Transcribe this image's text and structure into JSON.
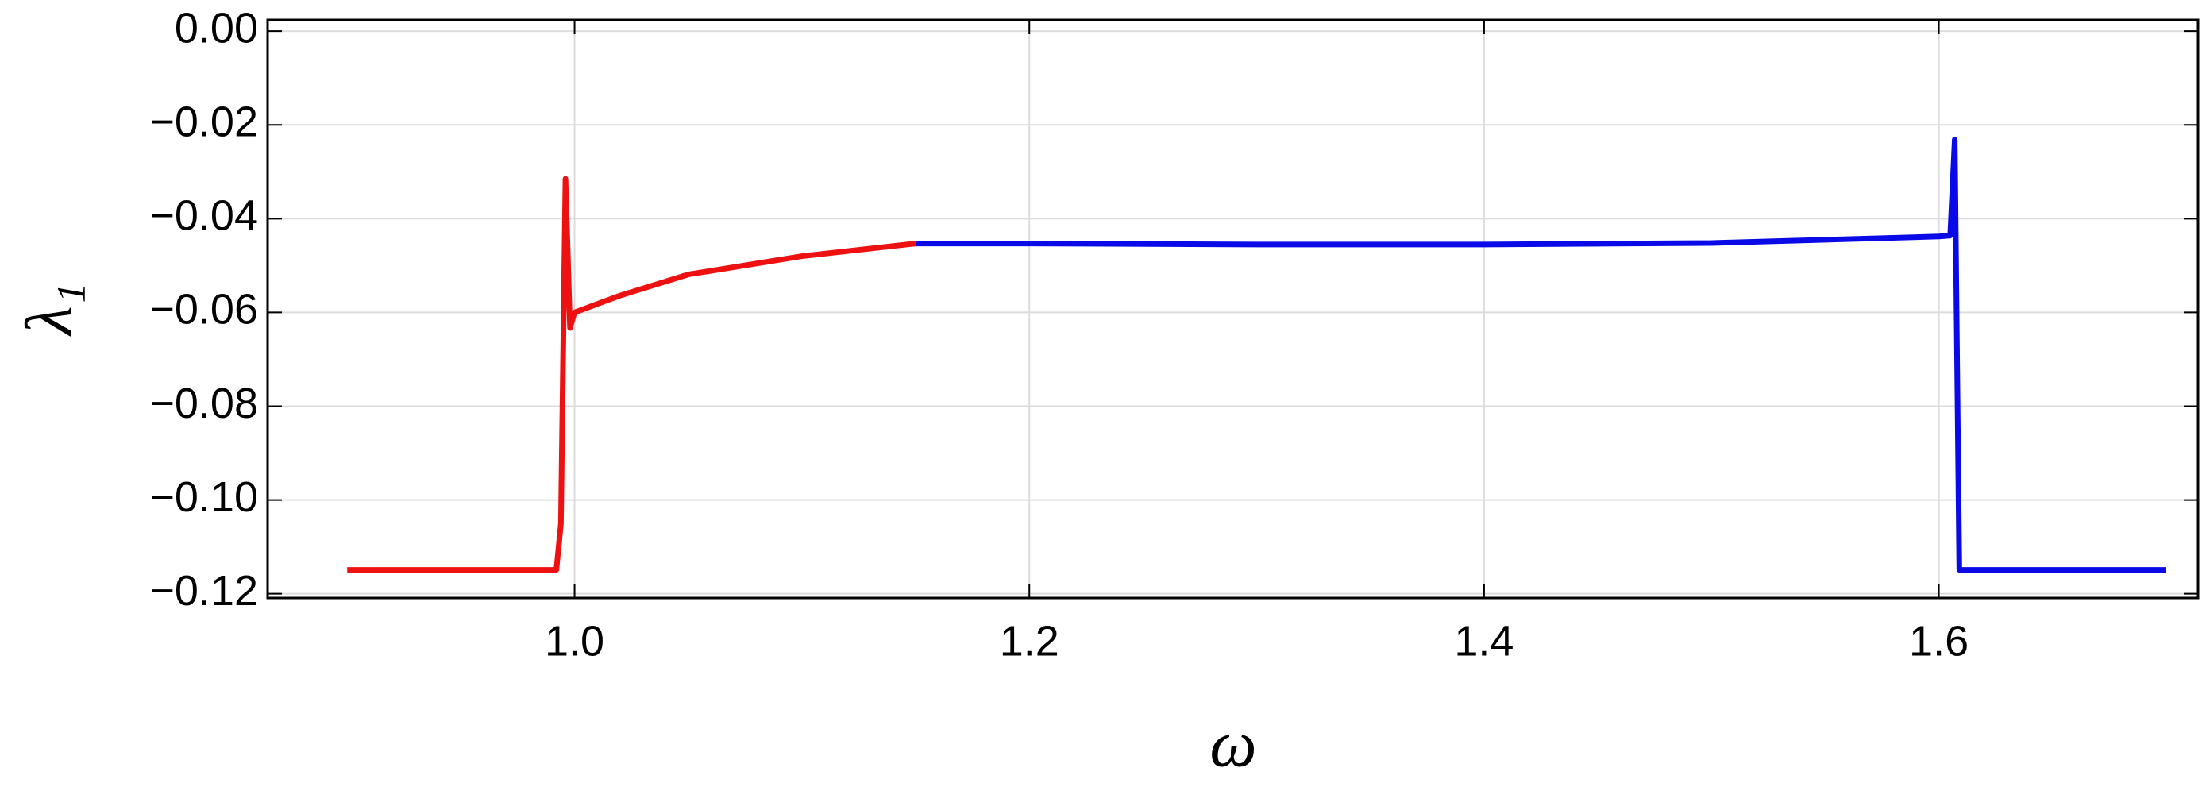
{
  "chart_data": {
    "type": "line",
    "xlabel": "ω",
    "ylabel": "λ₁",
    "xlim": [
      0.865,
      1.714
    ],
    "ylim": [
      -0.1209,
      0.0024
    ],
    "xticks": [
      {
        "value": 1,
        "label": "1.0"
      },
      {
        "value": 1.2,
        "label": "1.2"
      },
      {
        "value": 1.4,
        "label": "1.4"
      },
      {
        "value": 1.6,
        "label": "1.6"
      }
    ],
    "yticks": [
      {
        "value": 0,
        "label": "0.00"
      },
      {
        "value": -0.02,
        "label": "−0.02"
      },
      {
        "value": -0.04,
        "label": "−0.04"
      },
      {
        "value": -0.06,
        "label": "−0.06"
      },
      {
        "value": -0.08,
        "label": "−0.08"
      },
      {
        "value": -0.1,
        "label": "−0.10"
      },
      {
        "value": -0.12,
        "label": "−0.12"
      }
    ],
    "grid": true,
    "series": [
      {
        "color": "#ee1111",
        "x": [
          0.9,
          0.95,
          0.992,
          0.994,
          0.996,
          0.998,
          1.0,
          1.02,
          1.05,
          1.1,
          1.15
        ],
        "values": [
          -0.1149,
          -0.1149,
          -0.1149,
          -0.105,
          -0.0315,
          -0.0633,
          -0.06,
          -0.0564,
          -0.0519,
          -0.048,
          -0.0453
        ]
      },
      {
        "color": "#0a0ae8",
        "x": [
          1.15,
          1.2,
          1.3,
          1.4,
          1.5,
          1.6,
          1.605,
          1.607,
          1.609,
          1.65,
          1.7
        ],
        "values": [
          -0.0453,
          -0.0453,
          -0.0455,
          -0.0455,
          -0.0452,
          -0.0438,
          -0.0436,
          -0.0231,
          -0.1149,
          -0.1149,
          -0.1149
        ]
      }
    ]
  }
}
